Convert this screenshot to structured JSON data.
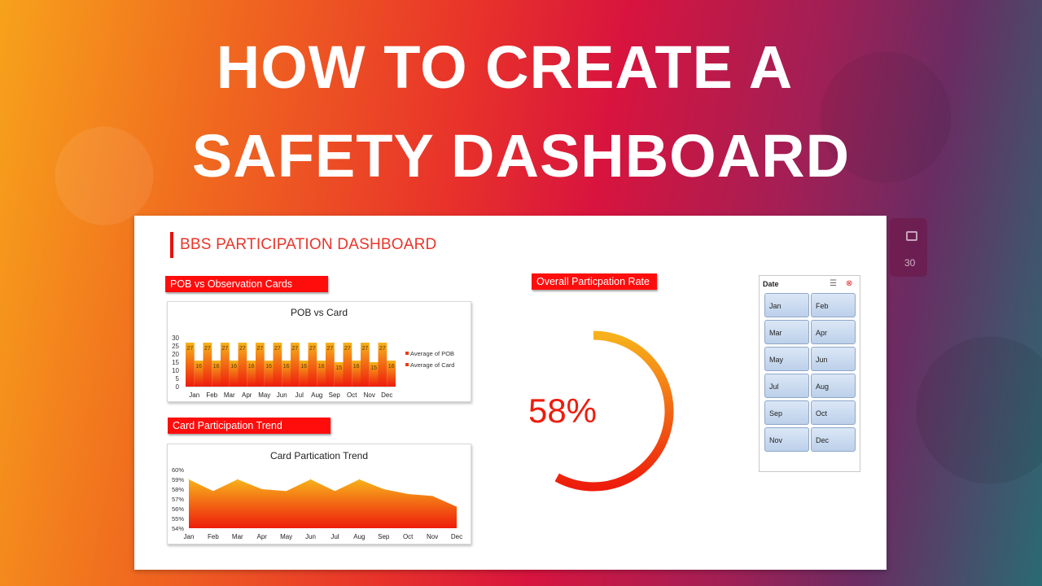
{
  "hero": {
    "line1": "HOW TO CREATE A",
    "line2": "SAFETY DASHBOARD"
  },
  "side_widget": {
    "number": "30"
  },
  "dashboard": {
    "title": "BBS PARTICIPATION DASHBOARD",
    "sections": {
      "pob_label": "POB vs Observation Cards",
      "trend_label": "Card Participation Trend",
      "rate_label": "Overall Particpation Rate"
    },
    "overall_rate": "58%"
  },
  "slicer": {
    "title": "Date",
    "items": [
      "Jan",
      "Feb",
      "Mar",
      "Apr",
      "May",
      "Jun",
      "Jul",
      "Aug",
      "Sep",
      "Oct",
      "Nov",
      "Dec"
    ]
  },
  "colors": {
    "accent_red": "#ff0d0d",
    "bar_top": "#f7b21b",
    "bar_bottom": "#ee1c0c"
  },
  "chart_data": [
    {
      "type": "bar",
      "title": "POB vs Card",
      "categories": [
        "Jan",
        "Feb",
        "Mar",
        "Apr",
        "May",
        "Jun",
        "Jul",
        "Aug",
        "Sep",
        "Oct",
        "Nov",
        "Dec"
      ],
      "series": [
        {
          "name": "Average of POB",
          "values": [
            27,
            27,
            27,
            27,
            27,
            27,
            27,
            27,
            27,
            27,
            27,
            27
          ]
        },
        {
          "name": "Average of Card",
          "values": [
            16,
            16,
            16,
            16,
            16,
            16,
            16,
            16,
            15,
            16,
            15,
            16
          ]
        }
      ],
      "ylim": [
        0,
        30
      ],
      "yticks": [
        0,
        5,
        10,
        15,
        20,
        25,
        30
      ],
      "legend": "right"
    },
    {
      "type": "area",
      "title": "Card Partication Trend",
      "categories": [
        "Jan",
        "Feb",
        "Mar",
        "Apr",
        "May",
        "Jun",
        "Jul",
        "Aug",
        "Sep",
        "Oct",
        "Nov",
        "Dec"
      ],
      "values": [
        59.0,
        57.8,
        59.0,
        58.0,
        57.8,
        59.0,
        57.8,
        59.0,
        58.0,
        57.5,
        57.3,
        56.2
      ],
      "ylim": [
        54,
        60
      ],
      "yticks": [
        "54%",
        "55%",
        "56%",
        "57%",
        "58%",
        "59%",
        "60%"
      ]
    },
    {
      "type": "pie",
      "title": "",
      "values": [
        58,
        42
      ],
      "label": "58%"
    }
  ]
}
